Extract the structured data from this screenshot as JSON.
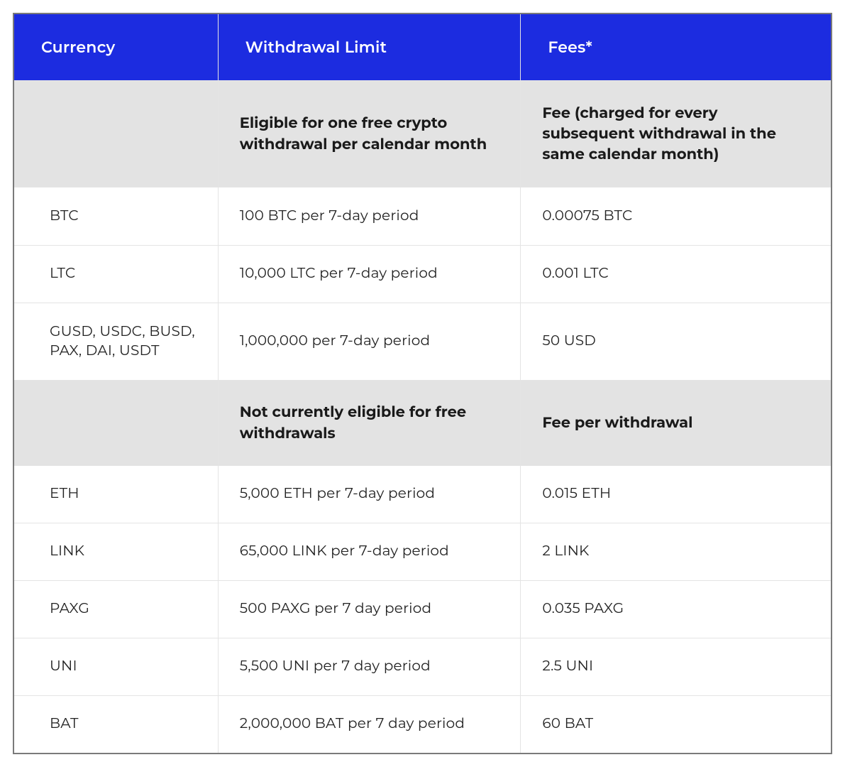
{
  "table": {
    "type": "table",
    "columns": [
      "Currency",
      "Withdrawal Limit",
      "Fees*"
    ],
    "column_widths_pct": [
      25,
      37,
      38
    ],
    "header_bg": "#1c2ce0",
    "header_text_color": "#ffffff",
    "header_fontsize": 22,
    "header_fontweight": 600,
    "subheader_bg": "#e3e3e3",
    "subheader_text_color": "#1a1a1a",
    "subheader_fontsize": 21,
    "subheader_fontweight": 700,
    "row_bg": "#ffffff",
    "row_text_color": "#222222",
    "row_fontsize": 20,
    "row_fontweight": 400,
    "border_color": "#e4e4e4",
    "outer_border_color": "#7a7a7a",
    "sections": [
      {
        "subheader": {
          "currency": "",
          "limit": "Eligible for one free crypto withdrawal per calendar month",
          "fee": "Fee (charged for every subsequent withdrawal in the same calendar month)"
        },
        "rows": [
          {
            "currency": "BTC",
            "limit": "100 BTC per 7-day period",
            "fee": "0.00075 BTC"
          },
          {
            "currency": "LTC",
            "limit": "10,000 LTC per 7-day period",
            "fee": "0.001 LTC"
          },
          {
            "currency": "GUSD, USDC, BUSD, PAX, DAI, USDT",
            "limit": "1,000,000 per 7-day period",
            "fee": "50 USD"
          }
        ]
      },
      {
        "subheader": {
          "currency": "",
          "limit": "Not currently eligible for free withdrawals",
          "fee": "Fee per withdrawal"
        },
        "rows": [
          {
            "currency": "ETH",
            "limit": "5,000 ETH per 7-day period",
            "fee": "0.015 ETH"
          },
          {
            "currency": "LINK",
            "limit": "65,000 LINK per 7-day period",
            "fee": "2 LINK"
          },
          {
            "currency": "PAXG",
            "limit": "500 PAXG per 7 day period",
            "fee": "0.035 PAXG"
          },
          {
            "currency": "UNI",
            "limit": "5,500 UNI per 7 day period",
            "fee": "2.5 UNI"
          },
          {
            "currency": "BAT",
            "limit": "2,000,000 BAT per 7 day period",
            "fee": "60 BAT"
          }
        ]
      }
    ]
  }
}
